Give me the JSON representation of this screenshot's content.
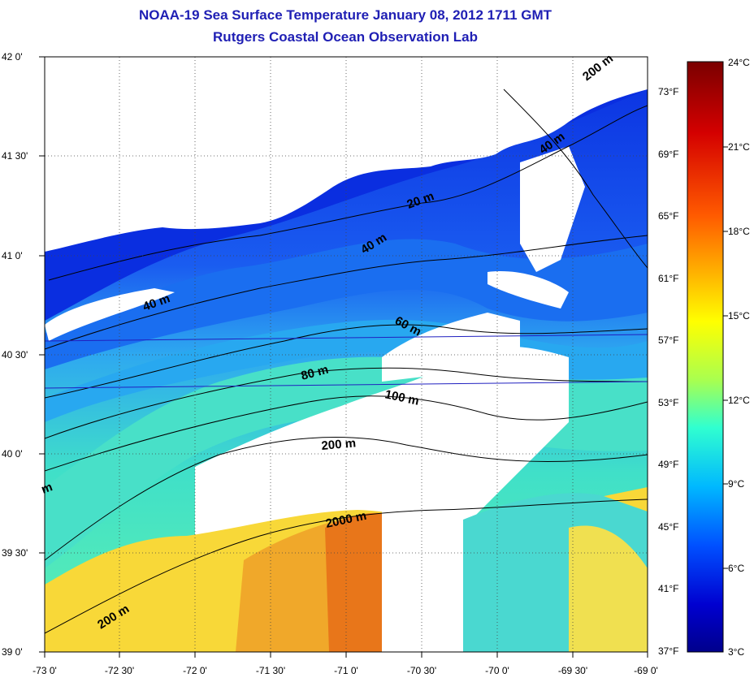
{
  "title": {
    "line1": "NOAA-19 Sea Surface Temperature January 08, 2012 1711 GMT",
    "line2": "Rutgers Coastal Ocean Observation Lab"
  },
  "map": {
    "lon_labels": [
      "-73 0'",
      "-72 30'",
      "-72 0'",
      "-71 30'",
      "-71 0'",
      "-70 30'",
      "-70 0'",
      "-69 30'",
      "-69 0'"
    ],
    "lat_labels": [
      "42 0'",
      "41 30'",
      "41 0'",
      "40 30'",
      "40 0'",
      "39 30'",
      "39 0'"
    ],
    "fahrenheit_labels": [
      "73°F",
      "69°F",
      "65°F",
      "61°F",
      "57°F",
      "53°F",
      "49°F",
      "45°F",
      "41°F",
      "37°F"
    ],
    "contour_labels": [
      "200 m",
      "40 m",
      "20 m",
      "40 m",
      "40 m",
      "60 m",
      "80 m",
      "100 m",
      "200 m",
      "2000 m",
      "200 m",
      "m"
    ]
  },
  "colorbar": {
    "celsius_labels": [
      "24°C",
      "21°C",
      "18°C",
      "15°C",
      "12°C",
      "9°C",
      "6°C",
      "3°C"
    ],
    "stops": [
      "#7a0000",
      "#d40000",
      "#ff5a00",
      "#ffb400",
      "#ffff00",
      "#a8ff50",
      "#30ffd0",
      "#00b8ff",
      "#0050ff",
      "#0000d0",
      "#00008c"
    ]
  },
  "colors": {
    "title": "#1f1fb4",
    "cold": "#0a2ee0",
    "mid": "#2ea8f0",
    "warm": "#40e0c8",
    "land": "#ffffff",
    "orange": "#f08a1c",
    "yellow": "#f8d838"
  }
}
